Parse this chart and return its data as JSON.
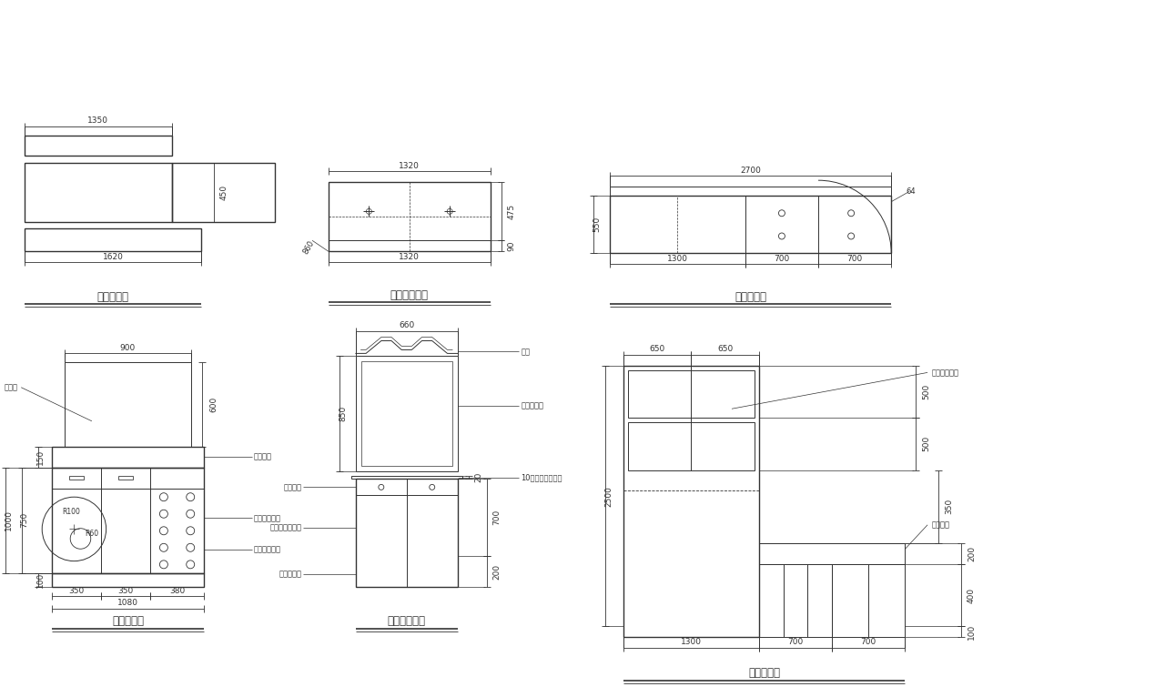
{
  "bg": "#ffffff",
  "lc": "#333333",
  "panels": {
    "shoe_front": {
      "label": "鞋柜立面图"
    },
    "dress_front": {
      "label": "梳妆台立面图"
    },
    "wardrobe_front": {
      "label": "衣柜立面图"
    },
    "shoe_plan": {
      "label": "鞋柜平面图"
    },
    "dress_plan": {
      "label": "梳妆台平面图"
    },
    "wardrobe_plan": {
      "label": "衣柜平面图"
    }
  }
}
